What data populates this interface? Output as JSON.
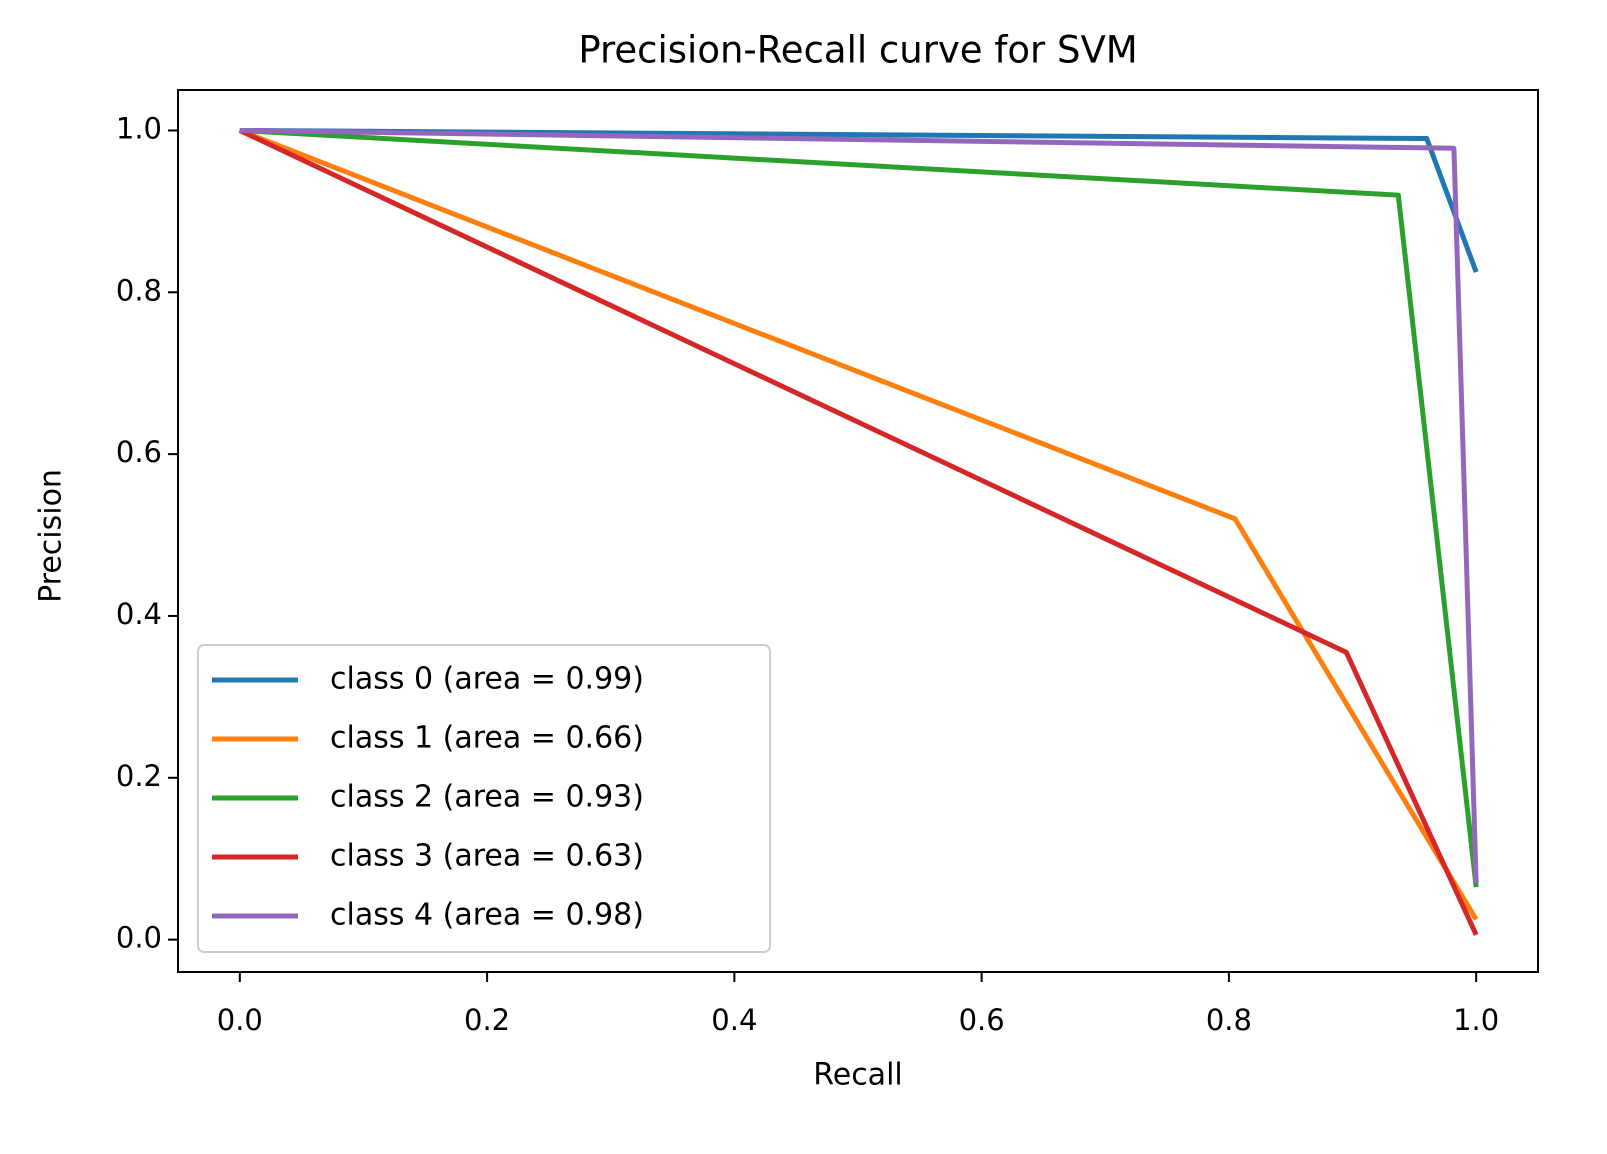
{
  "chart_data": {
    "type": "line",
    "title": "Precision-Recall curve for SVM",
    "x_label": "Recall",
    "y_label": "Precision",
    "xlim": [
      -0.05,
      1.05
    ],
    "ylim": [
      -0.04,
      1.05
    ],
    "xticks": [
      {
        "value": 0,
        "label": "0.0"
      },
      0.2,
      0.4,
      0.6,
      0.8,
      {
        "value": 1,
        "label": "1.0"
      }
    ],
    "yticks": [
      {
        "value": 0,
        "label": "0.0"
      },
      0.2,
      0.4,
      0.6,
      0.8,
      {
        "value": 1,
        "label": "1.0"
      }
    ],
    "legend": "lower left",
    "series": [
      {
        "name": "class 0 (area = 0.99)",
        "color": "#1f77b4",
        "x": [
          0,
          0.96,
          1
        ],
        "values": [
          1,
          0.99,
          0.825
        ]
      },
      {
        "name": "class 1 (area = 0.66)",
        "color": "#ff7f0e",
        "x": [
          0,
          0.805,
          1
        ],
        "values": [
          1,
          0.52,
          0.025
        ]
      },
      {
        "name": "class 2 (area = 0.93)",
        "color": "#2ca02c",
        "x": [
          0,
          0.937,
          1
        ],
        "values": [
          1,
          0.92,
          0.065
        ]
      },
      {
        "name": "class 3 (area = 0.63)",
        "color": "#d62728",
        "x": [
          0,
          0.895,
          1
        ],
        "values": [
          1,
          0.355,
          0.006
        ]
      },
      {
        "name": "class 4 (area = 0.98)",
        "color": "#9467bd",
        "x": [
          0,
          0.982,
          1
        ],
        "values": [
          1,
          0.978,
          0.07
        ]
      }
    ]
  }
}
